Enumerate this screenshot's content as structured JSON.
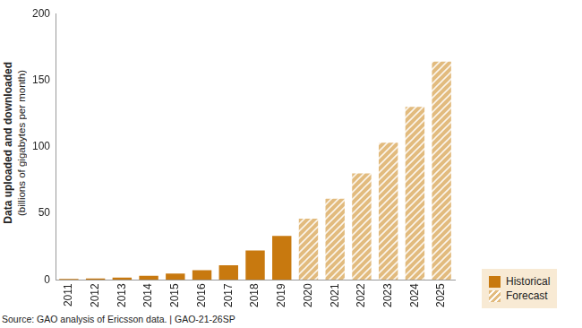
{
  "chart_data": {
    "type": "bar",
    "y_label": "Data uploaded and downloaded",
    "y_sublabel": "(billions of gigabytes per month)",
    "source": "Source: GAO analysis of Ericsson data.  |  GAO-21-26SP",
    "categories": [
      "2011",
      "2012",
      "2013",
      "2014",
      "2015",
      "2016",
      "2017",
      "2018",
      "2019",
      "2020",
      "2021",
      "2022",
      "2023",
      "2024",
      "2025"
    ],
    "series": [
      {
        "name": "Historical",
        "color": "#c8790f",
        "values": [
          0.7,
          1.1,
          1.8,
          3,
          4.7,
          7.3,
          11,
          22,
          33,
          null,
          null,
          null,
          null,
          null,
          null
        ]
      },
      {
        "name": "Forecast",
        "color": "#e2bb7e",
        "values": [
          null,
          null,
          null,
          null,
          null,
          null,
          null,
          null,
          null,
          46,
          61,
          80,
          103,
          130,
          164
        ]
      }
    ],
    "ylim": [
      0,
      200
    ],
    "yticks": [
      0,
      50,
      100,
      150,
      200
    ],
    "grid": false,
    "legend": "lower right"
  }
}
